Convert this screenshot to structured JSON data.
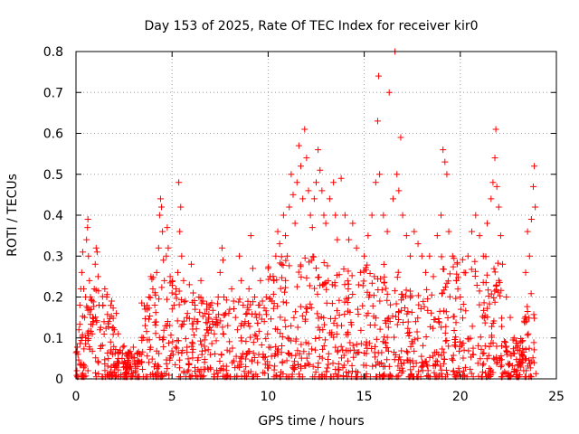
{
  "chart_data": {
    "type": "scatter",
    "title": "Day 153 of 2025, Rate Of TEC Index for receiver kir0",
    "xlabel": "GPS time / hours",
    "ylabel": "ROTI / TECUs",
    "xlim": [
      0,
      25
    ],
    "ylim": [
      0,
      0.8
    ],
    "x_ticks": [
      "0",
      "5",
      "10",
      "15",
      "20",
      "25"
    ],
    "y_ticks": [
      "0",
      "0.1",
      "0.2",
      "0.3",
      "0.4",
      "0.5",
      "0.6",
      "0.7",
      "0.8"
    ],
    "grid": true,
    "marker": "+",
    "colors": {
      "points": "#ff0000"
    },
    "series": [
      {
        "points": [
          [
            0.05,
            0.02
          ],
          [
            0.1,
            0.06
          ],
          [
            0.15,
            0.12
          ],
          [
            0.2,
            0.18
          ],
          [
            0.25,
            0.22
          ],
          [
            0.3,
            0.26
          ],
          [
            0.35,
            0.31
          ],
          [
            0.4,
            0.22
          ],
          [
            0.45,
            0.15
          ],
          [
            0.5,
            0.2
          ],
          [
            0.55,
            0.34
          ],
          [
            0.6,
            0.37
          ],
          [
            0.62,
            0.39
          ],
          [
            0.65,
            0.3
          ],
          [
            0.7,
            0.24
          ],
          [
            0.75,
            0.2
          ],
          [
            0.8,
            0.17
          ],
          [
            0.85,
            0.11
          ],
          [
            0.9,
            0.14
          ],
          [
            0.95,
            0.22
          ],
          [
            1.0,
            0.28
          ],
          [
            1.05,
            0.32
          ],
          [
            1.1,
            0.31
          ],
          [
            1.15,
            0.25
          ],
          [
            1.2,
            0.18
          ],
          [
            1.25,
            0.12
          ],
          [
            1.3,
            0.08
          ],
          [
            1.4,
            0.18
          ],
          [
            1.5,
            0.22
          ],
          [
            1.6,
            0.2
          ],
          [
            1.7,
            0.14
          ],
          [
            1.8,
            0.09
          ],
          [
            1.9,
            0.06
          ],
          [
            2.0,
            0.12
          ],
          [
            2.1,
            0.16
          ],
          [
            2.2,
            0.11
          ],
          [
            2.3,
            0.07
          ],
          [
            2.4,
            0.05
          ],
          [
            2.5,
            0.08
          ],
          [
            2.6,
            0.06
          ],
          [
            2.7,
            0.04
          ],
          [
            2.8,
            0.03
          ],
          [
            2.9,
            0.02
          ],
          [
            3.0,
            0.015
          ],
          [
            3.1,
            0.02
          ],
          [
            3.2,
            0.03
          ],
          [
            3.3,
            0.04
          ],
          [
            3.4,
            0.06
          ],
          [
            3.5,
            0.1
          ],
          [
            3.6,
            0.13
          ],
          [
            3.7,
            0.17
          ],
          [
            3.8,
            0.2
          ],
          [
            3.9,
            0.25
          ],
          [
            4.0,
            0.22
          ],
          [
            4.1,
            0.18
          ],
          [
            4.2,
            0.26
          ],
          [
            4.3,
            0.32
          ],
          [
            4.35,
            0.4
          ],
          [
            4.4,
            0.44
          ],
          [
            4.45,
            0.42
          ],
          [
            4.5,
            0.36
          ],
          [
            4.55,
            0.29
          ],
          [
            4.6,
            0.24
          ],
          [
            4.7,
            0.3
          ],
          [
            4.75,
            0.37
          ],
          [
            4.8,
            0.32
          ],
          [
            4.9,
            0.25
          ],
          [
            5.0,
            0.21
          ],
          [
            5.1,
            0.18
          ],
          [
            5.2,
            0.22
          ],
          [
            5.3,
            0.26
          ],
          [
            5.35,
            0.48
          ],
          [
            5.4,
            0.36
          ],
          [
            5.45,
            0.42
          ],
          [
            5.5,
            0.3
          ],
          [
            5.6,
            0.24
          ],
          [
            5.7,
            0.19
          ],
          [
            5.8,
            0.16
          ],
          [
            5.9,
            0.23
          ],
          [
            6.0,
            0.28
          ],
          [
            6.1,
            0.21
          ],
          [
            6.2,
            0.17
          ],
          [
            6.3,
            0.14
          ],
          [
            6.4,
            0.2
          ],
          [
            6.5,
            0.24
          ],
          [
            6.6,
            0.19
          ],
          [
            6.7,
            0.16
          ],
          [
            6.8,
            0.12
          ],
          [
            6.9,
            0.15
          ],
          [
            7.0,
            0.18
          ],
          [
            7.1,
            0.14
          ],
          [
            7.2,
            0.11
          ],
          [
            7.3,
            0.15
          ],
          [
            7.4,
            0.2
          ],
          [
            7.5,
            0.26
          ],
          [
            7.6,
            0.32
          ],
          [
            7.65,
            0.29
          ],
          [
            7.7,
            0.2
          ],
          [
            7.8,
            0.16
          ],
          [
            7.9,
            0.13
          ],
          [
            8.0,
            0.17
          ],
          [
            8.1,
            0.22
          ],
          [
            8.2,
            0.19
          ],
          [
            8.3,
            0.15
          ],
          [
            8.4,
            0.12
          ],
          [
            8.5,
            0.3
          ],
          [
            8.6,
            0.24
          ],
          [
            8.7,
            0.18
          ],
          [
            8.8,
            0.14
          ],
          [
            8.9,
            0.16
          ],
          [
            9.0,
            0.22
          ],
          [
            9.1,
            0.35
          ],
          [
            9.2,
            0.27
          ],
          [
            9.3,
            0.2
          ],
          [
            9.4,
            0.15
          ],
          [
            9.5,
            0.18
          ],
          [
            9.6,
            0.24
          ],
          [
            9.7,
            0.19
          ],
          [
            9.8,
            0.14
          ],
          [
            9.9,
            0.2
          ],
          [
            10.0,
            0.27
          ],
          [
            10.1,
            0.25
          ],
          [
            10.2,
            0.19
          ],
          [
            10.3,
            0.24
          ],
          [
            10.4,
            0.3
          ],
          [
            10.5,
            0.36
          ],
          [
            10.6,
            0.33
          ],
          [
            10.7,
            0.28
          ],
          [
            10.8,
            0.4
          ],
          [
            10.9,
            0.35
          ],
          [
            11.0,
            0.3
          ],
          [
            11.1,
            0.42
          ],
          [
            11.2,
            0.5
          ],
          [
            11.3,
            0.45
          ],
          [
            11.4,
            0.38
          ],
          [
            11.5,
            0.48
          ],
          [
            11.6,
            0.57
          ],
          [
            11.7,
            0.52
          ],
          [
            11.8,
            0.44
          ],
          [
            11.9,
            0.61
          ],
          [
            12.0,
            0.54
          ],
          [
            12.1,
            0.46
          ],
          [
            12.2,
            0.4
          ],
          [
            12.3,
            0.37
          ],
          [
            12.4,
            0.44
          ],
          [
            12.5,
            0.48
          ],
          [
            12.6,
            0.56
          ],
          [
            12.7,
            0.51
          ],
          [
            12.8,
            0.46
          ],
          [
            12.9,
            0.4
          ],
          [
            13.0,
            0.38
          ],
          [
            13.2,
            0.44
          ],
          [
            13.4,
            0.48
          ],
          [
            13.5,
            0.4
          ],
          [
            13.6,
            0.34
          ],
          [
            13.8,
            0.49
          ],
          [
            14.0,
            0.4
          ],
          [
            14.2,
            0.34
          ],
          [
            14.4,
            0.38
          ],
          [
            14.6,
            0.32
          ],
          [
            14.8,
            0.26
          ],
          [
            15.0,
            0.3
          ],
          [
            15.2,
            0.35
          ],
          [
            15.4,
            0.4
          ],
          [
            15.6,
            0.48
          ],
          [
            15.7,
            0.63
          ],
          [
            15.75,
            0.74
          ],
          [
            15.8,
            0.5
          ],
          [
            16.0,
            0.4
          ],
          [
            16.2,
            0.36
          ],
          [
            16.3,
            0.7
          ],
          [
            16.5,
            0.44
          ],
          [
            16.6,
            0.8
          ],
          [
            16.7,
            0.5
          ],
          [
            16.8,
            0.46
          ],
          [
            16.9,
            0.59
          ],
          [
            17.0,
            0.4
          ],
          [
            17.2,
            0.35
          ],
          [
            17.4,
            0.3
          ],
          [
            17.6,
            0.36
          ],
          [
            17.8,
            0.33
          ],
          [
            18.0,
            0.3
          ],
          [
            18.2,
            0.26
          ],
          [
            18.4,
            0.3
          ],
          [
            18.6,
            0.25
          ],
          [
            18.8,
            0.35
          ],
          [
            19.0,
            0.4
          ],
          [
            19.1,
            0.56
          ],
          [
            19.2,
            0.53
          ],
          [
            19.3,
            0.5
          ],
          [
            19.4,
            0.36
          ],
          [
            19.6,
            0.3
          ],
          [
            19.8,
            0.24
          ],
          [
            20.0,
            0.2
          ],
          [
            20.2,
            0.26
          ],
          [
            20.4,
            0.3
          ],
          [
            20.6,
            0.36
          ],
          [
            20.8,
            0.4
          ],
          [
            21.0,
            0.35
          ],
          [
            21.2,
            0.3
          ],
          [
            21.4,
            0.38
          ],
          [
            21.6,
            0.44
          ],
          [
            21.7,
            0.48
          ],
          [
            21.8,
            0.54
          ],
          [
            21.85,
            0.61
          ],
          [
            21.9,
            0.47
          ],
          [
            22.0,
            0.42
          ],
          [
            22.1,
            0.35
          ],
          [
            22.2,
            0.28
          ],
          [
            22.4,
            0.2
          ],
          [
            22.6,
            0.15
          ],
          [
            22.8,
            0.1
          ],
          [
            23.0,
            0.08
          ],
          [
            23.2,
            0.04
          ],
          [
            23.3,
            0.02
          ],
          [
            23.4,
            0.26
          ],
          [
            23.5,
            0.36
          ],
          [
            23.6,
            0.3
          ],
          [
            23.7,
            0.39
          ],
          [
            23.8,
            0.47
          ],
          [
            23.85,
            0.52
          ],
          [
            23.9,
            0.42
          ]
        ]
      }
    ]
  }
}
